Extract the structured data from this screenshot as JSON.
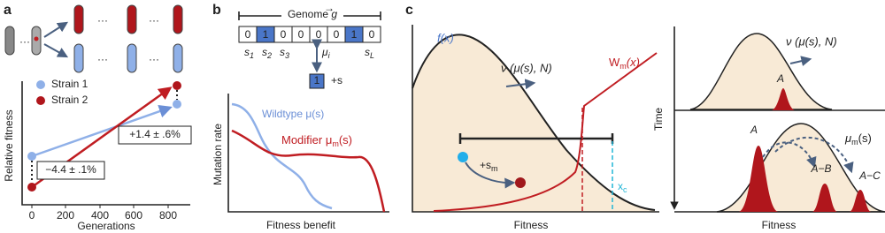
{
  "a": {
    "label": "a",
    "legend": [
      "Strain 1",
      "Strain 2"
    ],
    "y_label": "Relative fitness",
    "x_label": "Generations",
    "x_ticks": [
      0,
      200,
      400,
      600,
      800
    ],
    "annotations": [
      "+1.4 ± .6%",
      "−4.4 ± .1%"
    ]
  },
  "b": {
    "label": "b",
    "genome": {
      "text": "Genome ",
      "symbol": "g"
    },
    "sites": [
      "0",
      "1",
      "0",
      "0",
      "0",
      "0",
      "1",
      "0"
    ],
    "site_labels": [
      {
        "base": "s",
        "sub": "1"
      },
      {
        "base": "s",
        "sub": "2"
      },
      {
        "base": "s",
        "sub": "3"
      },
      {
        "base": "μ",
        "sub": "i"
      },
      {
        "base": "s",
        "sub": "L"
      }
    ],
    "mutation": "1",
    "effect": "+s",
    "y_label": "Mutation rate",
    "x_label": "Fitness benefit",
    "wildtype": "Wildtype μ(s)",
    "modifier": {
      "main": "Modifier μ",
      "sub": "m",
      "tail": "(s)"
    }
  },
  "c": {
    "label": "c",
    "f": "f(x)",
    "speed": "ν (μ(s), N)",
    "w": {
      "main": "W",
      "sub": "m",
      "tail": "(x)"
    },
    "sm": {
      "main": "+s",
      "sub": "m"
    },
    "xc": {
      "main": "x",
      "sub": "c"
    },
    "x_label_left": "Fitness",
    "time": "Time",
    "speed_right": "ν (μ(s), N)",
    "peak_top": "A",
    "peak_a": "A",
    "mu_m": {
      "main": "μ",
      "sub": "m",
      "tail": "(s)"
    },
    "peak_ab": "A−B",
    "peak_ac": "A−C",
    "x_label_right": "Fitness"
  }
}
